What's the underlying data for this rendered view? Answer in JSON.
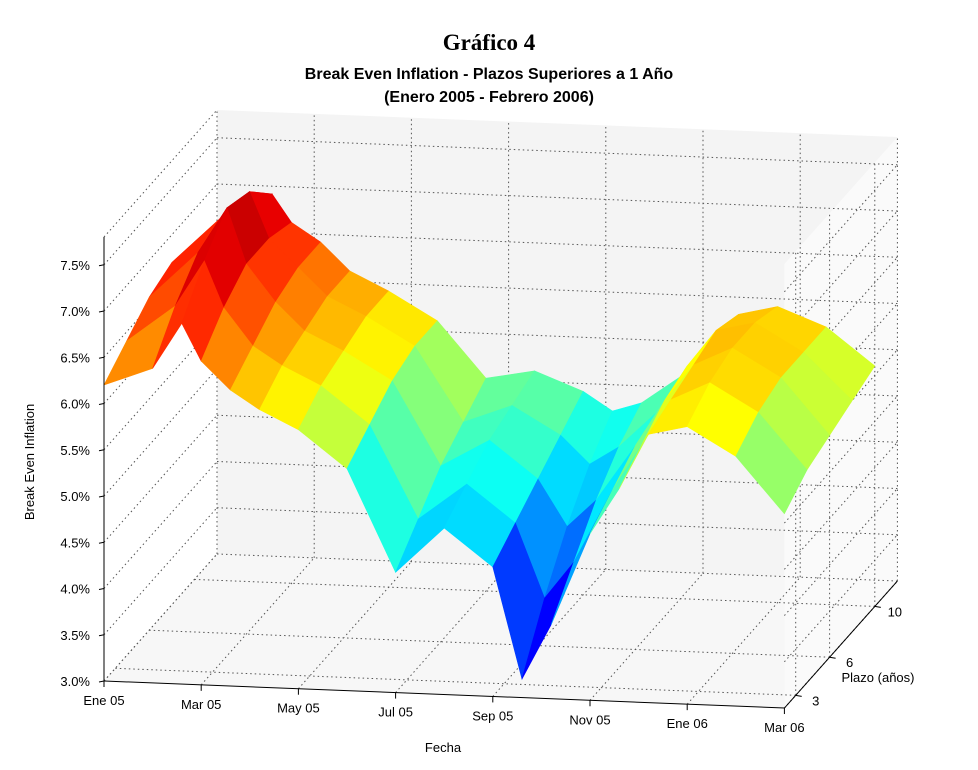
{
  "figure_label": "Gráfico 4",
  "chart_data": {
    "type": "surface",
    "title": "Break Even Inflation - Plazos Superiores a 1 Año",
    "subtitle": "(Enero 2005 - Febrero 2006)",
    "xlabel": "Fecha",
    "ylabel": "Plazo (años)",
    "zlabel": "Break Even Inflation",
    "x_ticks": [
      "Ene 05",
      "Mar 05",
      "May 05",
      "Jul 05",
      "Sep 05",
      "Nov 05",
      "Ene 06",
      "Mar 06"
    ],
    "y_ticks": [
      "3",
      "6",
      "10"
    ],
    "y_tick_values": [
      3,
      6,
      10
    ],
    "ylim": [
      2,
      12
    ],
    "z_ticks": [
      "3.0%",
      "3.5%",
      "4.0%",
      "4.5%",
      "5.0%",
      "5.5%",
      "6.0%",
      "6.5%",
      "7.0%",
      "7.5%"
    ],
    "z_tick_values": [
      3.0,
      3.5,
      4.0,
      4.5,
      5.0,
      5.5,
      6.0,
      6.5,
      7.0,
      7.5
    ],
    "zlim": [
      3.0,
      7.8
    ],
    "grid": true,
    "colormap": "jet",
    "series": [
      {
        "plazo": 2,
        "x": [
          0.0,
          0.5,
          0.8,
          1.0,
          1.3,
          1.6,
          2.0,
          2.5,
          3.0,
          3.5,
          4.0,
          4.3,
          4.6,
          5.0,
          5.3,
          5.6,
          6.0,
          6.5,
          7.0
        ],
        "z": [
          6.2,
          6.4,
          6.9,
          6.5,
          6.2,
          6.0,
          5.8,
          5.4,
          4.3,
          4.8,
          4.4,
          3.2,
          3.8,
          4.8,
          5.3,
          5.9,
          6.0,
          5.7,
          5.1
        ]
      },
      {
        "plazo": 4,
        "x": [
          0.0,
          0.5,
          0.8,
          1.0,
          1.3,
          1.6,
          2.0,
          2.5,
          3.0,
          3.5,
          4.0,
          4.3,
          4.6,
          5.0,
          5.3,
          5.6,
          6.0,
          6.5,
          7.0
        ],
        "z": [
          6.4,
          6.8,
          7.3,
          6.8,
          6.4,
          6.2,
          6.0,
          5.6,
          4.6,
          5.0,
          4.6,
          3.8,
          4.2,
          5.0,
          5.5,
          6.0,
          6.2,
          5.9,
          5.3
        ]
      },
      {
        "plazo": 6,
        "x": [
          0.0,
          0.5,
          0.8,
          1.0,
          1.3,
          1.6,
          2.0,
          2.5,
          3.0,
          3.5,
          4.0,
          4.3,
          4.6,
          5.0,
          5.3,
          5.6,
          6.0,
          6.5,
          7.0
        ],
        "z": [
          6.6,
          7.1,
          7.6,
          7.0,
          6.6,
          6.3,
          6.1,
          5.8,
          4.9,
          5.2,
          4.8,
          4.3,
          4.6,
          5.2,
          5.7,
          6.1,
          6.3,
          6.0,
          5.4
        ]
      },
      {
        "plazo": 8,
        "x": [
          0.0,
          0.5,
          0.8,
          1.0,
          1.3,
          1.6,
          2.0,
          2.5,
          3.0,
          3.5,
          4.0,
          4.3,
          4.6,
          5.0,
          5.3,
          5.6,
          6.0,
          6.5,
          7.0
        ],
        "z": [
          6.7,
          7.2,
          7.5,
          7.0,
          6.7,
          6.4,
          6.2,
          5.9,
          5.1,
          5.3,
          5.0,
          4.7,
          4.9,
          5.3,
          5.8,
          6.2,
          6.3,
          6.0,
          5.5
        ]
      },
      {
        "plazo": 10,
        "x": [
          0.0,
          0.5,
          0.8,
          1.0,
          1.3,
          1.6,
          2.0,
          2.5,
          3.0,
          3.5,
          4.0,
          4.3,
          4.6,
          5.0,
          5.3,
          5.6,
          6.0,
          6.5,
          7.0
        ],
        "z": [
          6.6,
          7.0,
          7.2,
          6.9,
          6.7,
          6.4,
          6.2,
          5.9,
          5.3,
          5.4,
          5.2,
          5.0,
          5.1,
          5.4,
          5.8,
          6.1,
          6.2,
          6.0,
          5.6
        ]
      }
    ]
  }
}
